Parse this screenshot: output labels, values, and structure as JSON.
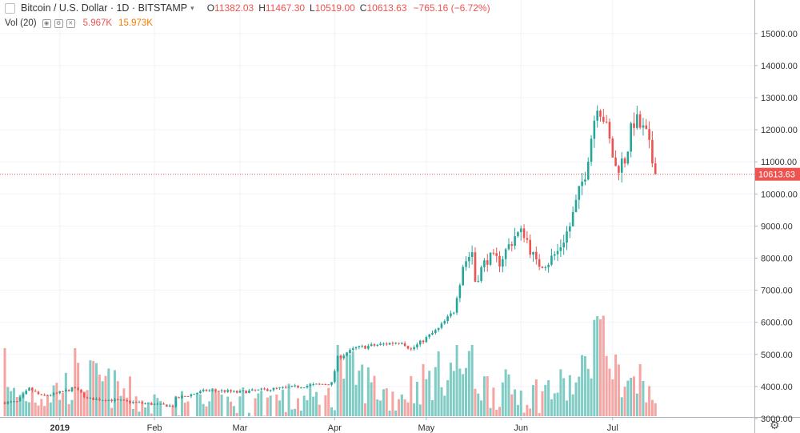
{
  "header": {
    "title": "Bitcoin / U.S. Dollar · 1D · BITSTAMP",
    "caret": "▾",
    "open_label": "O",
    "open_value": "11382.03",
    "high_label": "H",
    "high_value": "11467.30",
    "low_label": "L",
    "low_value": "10519.00",
    "close_label": "C",
    "close_value": "10613.63",
    "change": "−765.16 (−6.72%)"
  },
  "volume_legend": {
    "label": "Vol (20)",
    "eye_icon": "eye-icon",
    "settings_icon": "settings-icon",
    "close_icon": "close-icon",
    "value": "5.967K",
    "ma_value": "15.973K"
  },
  "price_tag": "10613.63",
  "settings_gear": "gear-icon",
  "colors": {
    "up": "#26a69a",
    "down": "#ef5350",
    "up_volume": "#80cbc4",
    "down_volume": "#f5a4a2",
    "price_line": "#ef5350",
    "grid": "#f0f3fa"
  },
  "chart_data": {
    "type": "candlestick",
    "x_tick_labels": [
      "2019",
      "Feb",
      "Mar",
      "Apr",
      "May",
      "Jun",
      "Jul"
    ],
    "y_tick_labels": [
      "3000.00",
      "4000.00",
      "5000.00",
      "6000.00",
      "7000.00",
      "8000.00",
      "9000.00",
      "10000.00",
      "11000.00",
      "12000.00",
      "13000.00",
      "14000.00",
      "15000.00"
    ],
    "y_ticks": [
      3000,
      4000,
      5000,
      6000,
      7000,
      8000,
      9000,
      10000,
      11000,
      12000,
      13000,
      14000,
      15000
    ],
    "ylim": [
      2200,
      15300
    ],
    "x_ticks": [
      "2019-01-01",
      "2019-02-01",
      "2019-03-01",
      "2019-04-01",
      "2019-05-01",
      "2019-06-01",
      "2019-07-01"
    ],
    "grid": true,
    "last_price": 10613.63,
    "price_path": [
      [
        "2018-12-14",
        3500
      ],
      [
        "2018-12-18",
        3520
      ],
      [
        "2018-12-22",
        3930
      ],
      [
        "2018-12-26",
        3700
      ],
      [
        "2018-12-31",
        3780
      ],
      [
        "2019-01-06",
        3950
      ],
      [
        "2019-01-10",
        3620
      ],
      [
        "2019-01-18",
        3580
      ],
      [
        "2019-01-28",
        3480
      ],
      [
        "2019-02-07",
        3390
      ],
      [
        "2019-02-08",
        3620
      ],
      [
        "2019-02-18",
        3880
      ],
      [
        "2019-02-24",
        3860
      ],
      [
        "2019-02-28",
        3820
      ],
      [
        "2019-03-15",
        3950
      ],
      [
        "2019-03-31",
        4100
      ],
      [
        "2019-04-02",
        4890
      ],
      [
        "2019-04-08",
        5200
      ],
      [
        "2019-04-23",
        5400
      ],
      [
        "2019-04-26",
        5150
      ],
      [
        "2019-05-05",
        5800
      ],
      [
        "2019-05-10",
        6350
      ],
      [
        "2019-05-13",
        7800
      ],
      [
        "2019-05-16",
        8200
      ],
      [
        "2019-05-17",
        7300
      ],
      [
        "2019-05-21",
        8000
      ],
      [
        "2019-05-25",
        7900
      ],
      [
        "2019-05-30",
        8700
      ],
      [
        "2019-06-02",
        8800
      ],
      [
        "2019-06-06",
        7800
      ],
      [
        "2019-06-10",
        7900
      ],
      [
        "2019-06-13",
        8200
      ],
      [
        "2019-06-17",
        9000
      ],
      [
        "2019-06-22",
        10700
      ],
      [
        "2019-06-26",
        12900
      ],
      [
        "2019-06-28",
        12400
      ],
      [
        "2019-07-02",
        10800
      ],
      [
        "2019-07-05",
        11100
      ],
      [
        "2019-07-08",
        12300
      ],
      [
        "2019-07-10",
        12100
      ],
      [
        "2019-07-12",
        11800
      ],
      [
        "2019-07-15",
        10613
      ]
    ],
    "volume_path": [
      [
        "2018-12-14",
        2700
      ],
      [
        "2018-12-31",
        2900
      ],
      [
        "2019-01-10",
        3300
      ],
      [
        "2019-01-30",
        2500
      ],
      [
        "2019-02-15",
        2400
      ],
      [
        "2019-03-10",
        2600
      ],
      [
        "2019-03-31",
        2600
      ],
      [
        "2019-04-03",
        3600
      ],
      [
        "2019-04-20",
        2700
      ],
      [
        "2019-05-12",
        3700
      ],
      [
        "2019-05-20",
        3000
      ],
      [
        "2019-06-05",
        2800
      ],
      [
        "2019-06-20",
        3100
      ],
      [
        "2019-06-26",
        4700
      ],
      [
        "2019-07-02",
        3500
      ],
      [
        "2019-07-15",
        2500
      ]
    ],
    "volume_spikes": [
      [
        "2018-12-14",
        4300
      ],
      [
        "2019-01-06",
        4300
      ],
      [
        "2019-04-02",
        4400
      ],
      [
        "2019-05-11",
        4400
      ],
      [
        "2019-05-16",
        4400
      ],
      [
        "2019-06-26",
        5300
      ],
      [
        "2019-06-27",
        5200
      ],
      [
        "2019-07-02",
        4100
      ],
      [
        "2019-07-10",
        3800
      ]
    ]
  }
}
